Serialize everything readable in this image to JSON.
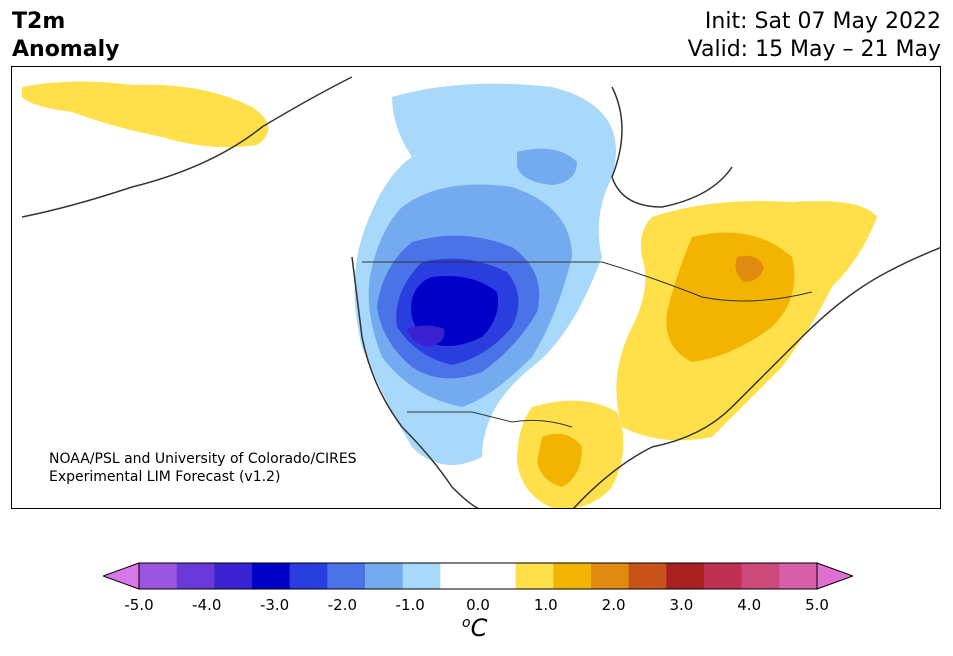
{
  "title": {
    "variable": "T2m",
    "variable2": "Anomaly",
    "init": "Init: Sat 07 May 2022",
    "valid": "Valid: 15 May – 21 May"
  },
  "credit": {
    "line1": "NOAA/PSL and University of Colorado/CIRES",
    "line2": "Experimental LIM Forecast (v1.2)"
  },
  "colorbar": {
    "unit_base": "C",
    "unit_sup": "o",
    "ticks": [
      "-5.0",
      "-4.0",
      "-3.0",
      "-2.0",
      "-1.0",
      "0.0",
      "1.0",
      "2.0",
      "3.0",
      "4.0",
      "5.0"
    ],
    "colors": [
      "#9b55e0",
      "#6a3ad8",
      "#3a22d0",
      "#0000c8",
      "#2a3ee0",
      "#4a73e8",
      "#74aaf0",
      "#a8d8fa",
      "#ffffff",
      "#ffffff",
      "#ffe04a",
      "#f2b400",
      "#e08a10",
      "#c85218",
      "#a82020",
      "#c03050",
      "#cc4a7a",
      "#d860a8"
    ],
    "extend_low": "#d878e8",
    "extend_high": "#e070d0"
  }
}
